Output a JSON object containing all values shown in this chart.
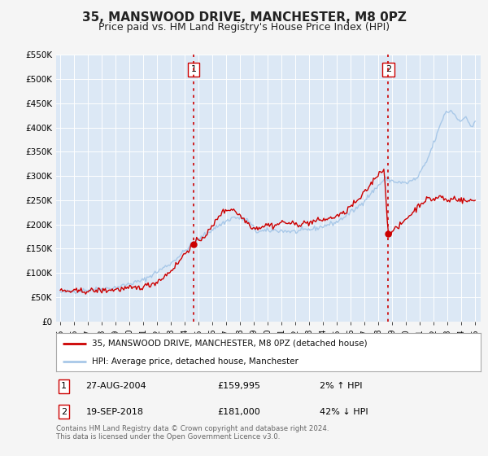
{
  "title": "35, MANSWOOD DRIVE, MANCHESTER, M8 0PZ",
  "subtitle": "Price paid vs. HM Land Registry's House Price Index (HPI)",
  "ylim": [
    0,
    550000
  ],
  "xlim_start": 1994.7,
  "xlim_end": 2025.4,
  "yticks": [
    0,
    50000,
    100000,
    150000,
    200000,
    250000,
    300000,
    350000,
    400000,
    450000,
    500000,
    550000
  ],
  "ytick_labels": [
    "£0",
    "£50K",
    "£100K",
    "£150K",
    "£200K",
    "£250K",
    "£300K",
    "£350K",
    "£400K",
    "£450K",
    "£500K",
    "£550K"
  ],
  "background_color": "#f5f5f5",
  "plot_bg_color": "#dce8f5",
  "grid_color": "#ffffff",
  "hpi_color": "#a8c8e8",
  "price_color": "#cc0000",
  "marker_color": "#cc0000",
  "event1_x": 2004.65,
  "event1_y": 159995,
  "event1_label": "1",
  "event2_x": 2018.72,
  "event2_y": 181000,
  "event2_label": "2",
  "legend_price_label": "35, MANSWOOD DRIVE, MANCHESTER, M8 0PZ (detached house)",
  "legend_hpi_label": "HPI: Average price, detached house, Manchester",
  "annotation1_date": "27-AUG-2004",
  "annotation1_price": "£159,995",
  "annotation1_hpi": "2% ↑ HPI",
  "annotation2_date": "19-SEP-2018",
  "annotation2_price": "£181,000",
  "annotation2_hpi": "42% ↓ HPI",
  "footer": "Contains HM Land Registry data © Crown copyright and database right 2024.\nThis data is licensed under the Open Government Licence v3.0.",
  "title_fontsize": 11,
  "subtitle_fontsize": 9
}
